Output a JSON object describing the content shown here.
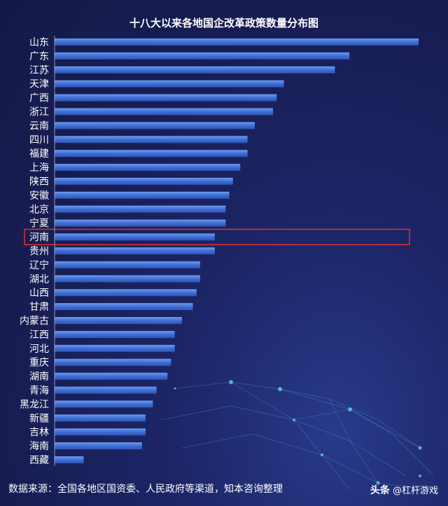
{
  "title": "十八大以来各地国企改革政策数量分布图",
  "footer": {
    "source": "数据来源：全国各地区国资委、人民政府等渠道，知本咨询整理",
    "brand_name": "头条",
    "brand_handle": "@杠杆游戏"
  },
  "colors": {
    "bar": "#3f6fd6",
    "bar_top": "#6f9bf0",
    "highlight": "#e0332c"
  },
  "chart_data": {
    "type": "bar",
    "orientation": "horizontal",
    "title": "十八大以来各地国企改革政策数量分布图",
    "categories": [
      "山东",
      "广东",
      "江苏",
      "天津",
      "广西",
      "浙江",
      "云南",
      "四川",
      "福建",
      "上海",
      "陕西",
      "安徽",
      "北京",
      "宁夏",
      "河南",
      "贵州",
      "辽宁",
      "湖北",
      "山西",
      "甘肃",
      "内蒙古",
      "江西",
      "河北",
      "重庆",
      "湖南",
      "青海",
      "黑龙江",
      "新疆",
      "吉林",
      "海南",
      "西藏"
    ],
    "values": [
      100,
      81,
      77,
      63,
      61,
      60,
      55,
      53,
      53,
      51,
      49,
      48,
      47,
      47,
      44,
      44,
      40,
      40,
      39,
      38,
      35,
      33,
      33,
      32,
      31,
      28,
      27,
      25,
      25,
      24,
      8
    ],
    "highlighted_category": "河南",
    "xlim": [
      0,
      100
    ],
    "grid": false,
    "legend": "none"
  }
}
